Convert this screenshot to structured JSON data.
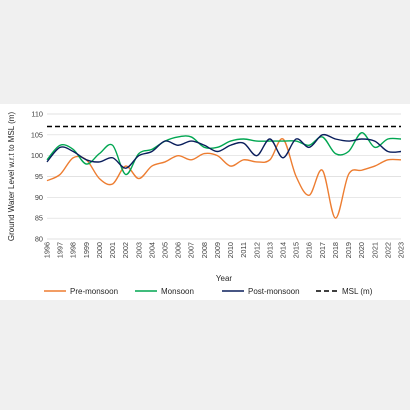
{
  "chart_data": {
    "type": "line",
    "title": "",
    "xlabel": "Year",
    "ylabel": "Ground Water Level w.r.t to MSL (m)",
    "xlim": [
      1996,
      2023
    ],
    "ylim": [
      80,
      110
    ],
    "y_ticks": [
      "80",
      "85",
      "90",
      "95",
      "100",
      "105",
      "110"
    ],
    "x": [
      "1996",
      "1997",
      "1998",
      "1999",
      "2000",
      "2001",
      "2002",
      "2003",
      "2004",
      "2005",
      "2006",
      "2007",
      "2008",
      "2009",
      "2010",
      "2011",
      "2012",
      "2013",
      "2014",
      "2015",
      "2016",
      "2017",
      "2018",
      "2019",
      "2020",
      "2021",
      "2022",
      "2023"
    ],
    "grid": "horizontal",
    "legend_position": "bottom",
    "series": [
      {
        "name": "Pre-monsoon",
        "color": "#ED7D31",
        "dash": "solid",
        "values": [
          94,
          95.5,
          99.5,
          99,
          94.5,
          93.2,
          97.5,
          94.5,
          97.5,
          98.5,
          100,
          99,
          100.5,
          100,
          97.5,
          99,
          98.5,
          99,
          104,
          95,
          90.5,
          96.5,
          85,
          95.5,
          96.5,
          97.5,
          99,
          99
        ]
      },
      {
        "name": "Monsoon",
        "color": "#00A651",
        "dash": "solid",
        "values": [
          99,
          102.5,
          101.5,
          98,
          100.5,
          102.5,
          95.5,
          100.5,
          101.5,
          103.5,
          104.5,
          104.5,
          102,
          102,
          103.5,
          104,
          103.5,
          103.5,
          103.5,
          103.5,
          102.5,
          104.5,
          100.5,
          101,
          105.5,
          102,
          104,
          104
        ]
      },
      {
        "name": "Post-monsoon",
        "color": "#0A1E5C",
        "dash": "solid",
        "values": [
          98.5,
          102,
          101,
          99,
          98.5,
          99.5,
          97,
          100,
          101,
          103.5,
          102.5,
          103.5,
          102.5,
          101,
          102.5,
          103,
          100,
          104,
          99.5,
          104,
          102,
          105,
          104,
          103.5,
          104,
          103.5,
          101,
          101
        ]
      },
      {
        "name": "MSL (m)",
        "color": "#000000",
        "dash": "dashed",
        "values": [
          107,
          107,
          107,
          107,
          107,
          107,
          107,
          107,
          107,
          107,
          107,
          107,
          107,
          107,
          107,
          107,
          107,
          107,
          107,
          107,
          107,
          107,
          107,
          107,
          107,
          107,
          107,
          107
        ]
      }
    ]
  }
}
